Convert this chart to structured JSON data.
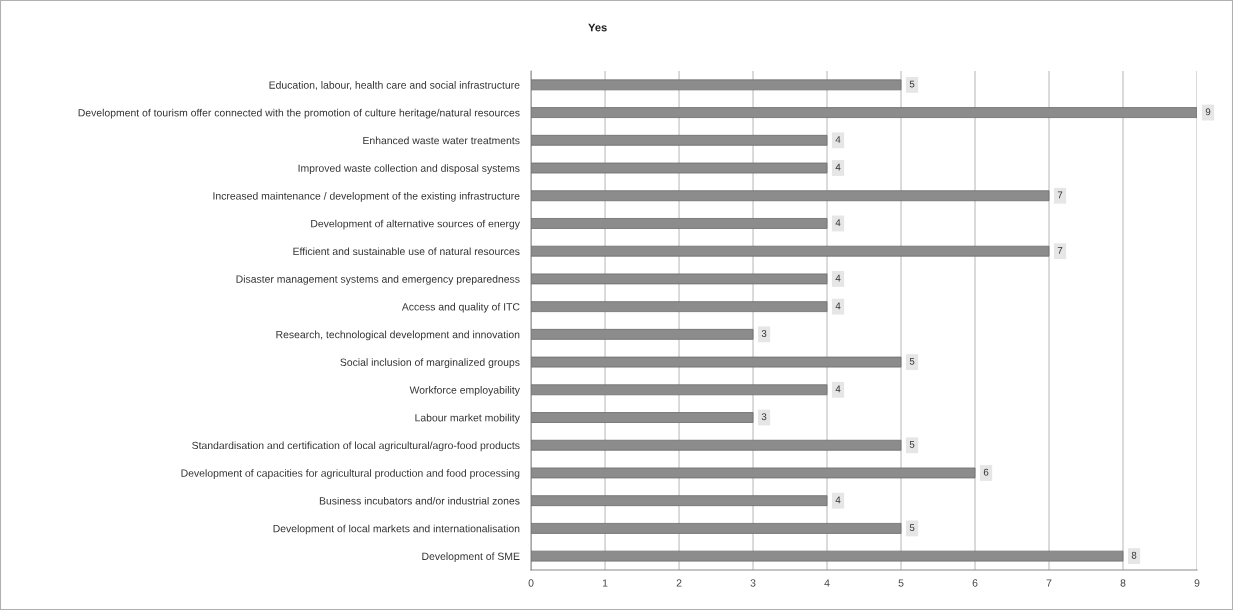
{
  "chart_data": {
    "type": "bar",
    "orientation": "horizontal",
    "title": "Yes",
    "categories": [
      "Education, labour, health care and social infrastructure",
      "Development of tourism offer connected with the promotion of culture heritage/natural resources",
      "Enhanced waste water treatments",
      "Improved waste collection and disposal systems",
      "Increased maintenance / development of the existing infrastructure",
      "Development of alternative sources of energy",
      "Efficient and sustainable use of natural resources",
      "Disaster management systems and emergency preparedness",
      "Access and quality of ITC",
      "Research, technological development and innovation",
      "Social inclusion of marginalized groups",
      "Workforce employability",
      "Labour market mobility",
      "Standardisation and certification of local agricultural/agro-food products",
      "Development of capacities for agricultural production and food processing",
      "Business incubators and/or industrial zones",
      "Development of local markets and internationalisation",
      "Development of SME"
    ],
    "values": [
      5,
      9,
      4,
      4,
      7,
      4,
      7,
      4,
      4,
      3,
      5,
      4,
      3,
      5,
      6,
      4,
      5,
      8
    ],
    "color": "#8c8c8c",
    "xlim": [
      0,
      9
    ],
    "xticks": [
      0,
      1,
      2,
      3,
      4,
      5,
      6,
      7,
      8,
      9
    ],
    "grid": "x",
    "data_labels": true
  }
}
